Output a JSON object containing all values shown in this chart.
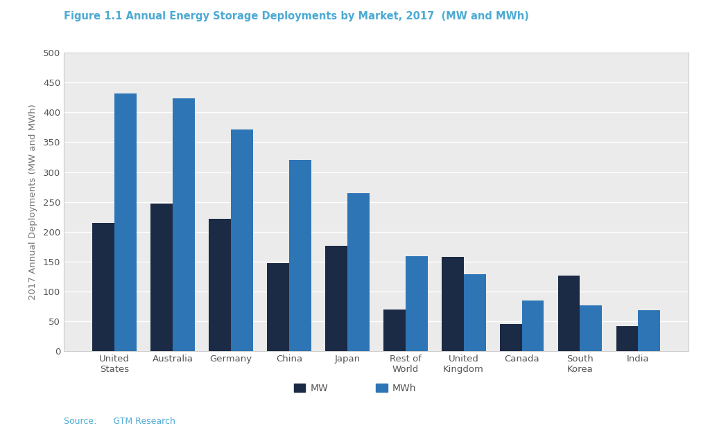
{
  "title": "Figure 1.1 Annual Energy Storage Deployments by Market, 2017  (MW and MWh)",
  "ylabel": "2017 Annual Deployments (MW and MWh)",
  "source": "Source:      GTM Research",
  "categories": [
    "United\nStates",
    "Australia",
    "Germany",
    "China",
    "Japan",
    "Rest of\nWorld",
    "United\nKingdom",
    "Canada",
    "South\nKorea",
    "India"
  ],
  "mw_values": [
    215,
    247,
    222,
    148,
    176,
    70,
    158,
    45,
    127,
    42
  ],
  "mwh_values": [
    432,
    423,
    371,
    320,
    265,
    159,
    129,
    85,
    77,
    69
  ],
  "color_mw": "#1b2a45",
  "color_mwh": "#2e75b6",
  "ylim": [
    0,
    500
  ],
  "yticks": [
    0,
    50,
    100,
    150,
    200,
    250,
    300,
    350,
    400,
    450,
    500
  ],
  "bg_color": "#ebebeb",
  "fig_bg": "#ffffff",
  "title_color": "#4baad3",
  "bar_width": 0.38,
  "legend_mw_label": "MW",
  "legend_mwh_label": "MWh",
  "source_color": "#4baad3",
  "tick_color": "#555555",
  "ylabel_color": "#777777",
  "grid_color": "#ffffff",
  "spine_color": "#cccccc"
}
